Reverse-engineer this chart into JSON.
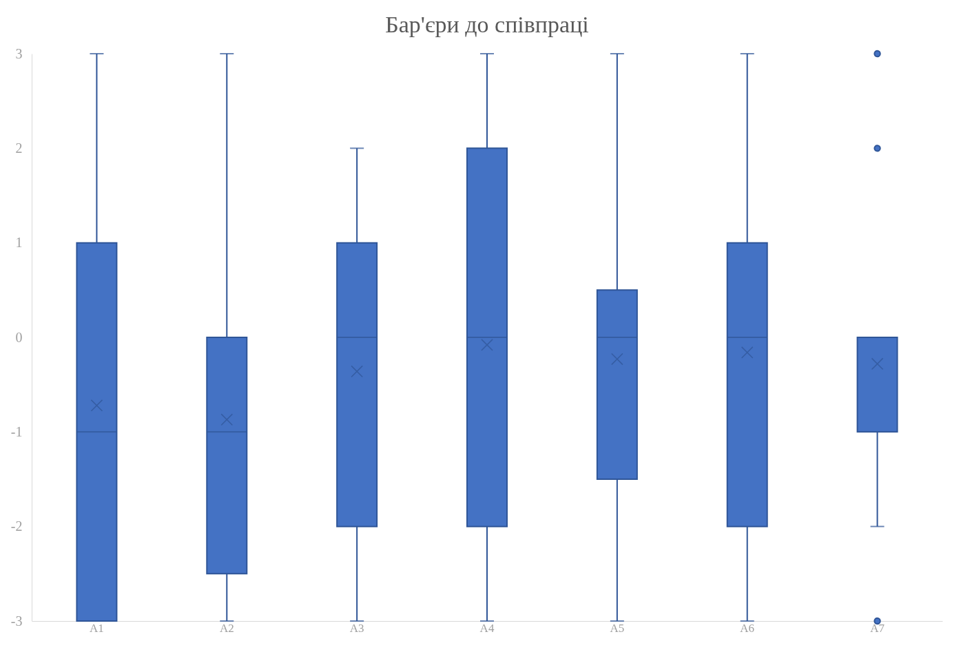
{
  "chart_data": {
    "type": "box",
    "title": "Бар'єри до співпраці",
    "categories": [
      "A1",
      "A2",
      "A3",
      "A4",
      "A5",
      "A6",
      "A7"
    ],
    "color": "#4472c4",
    "boxes": [
      {
        "low": -3,
        "q1": -3,
        "median": -1,
        "q3": 1,
        "high": 3,
        "mean": -0.72
      },
      {
        "low": -3,
        "q1": -2.5,
        "median": -1,
        "q3": 0,
        "high": 3,
        "mean": -0.87
      },
      {
        "low": -3,
        "q1": -2,
        "median": 0,
        "q3": 1,
        "high": 2,
        "mean": -0.36
      },
      {
        "low": -3,
        "q1": -2,
        "median": 0,
        "q3": 2,
        "high": 3,
        "mean": -0.08
      },
      {
        "low": -3,
        "q1": -1.5,
        "median": 0,
        "q3": 0.5,
        "high": 3,
        "mean": -0.23
      },
      {
        "low": -3,
        "q1": -2,
        "median": 0,
        "q3": 1,
        "high": 3,
        "mean": -0.16
      },
      {
        "low": -2,
        "q1": -1,
        "median": 0,
        "q3": 0,
        "high": 0,
        "mean": -0.28,
        "outliers": [
          3,
          2,
          -3
        ]
      }
    ],
    "ylim": [
      -3,
      3
    ],
    "yticks": [
      -3,
      -2,
      -1,
      0,
      1,
      2,
      3
    ],
    "grid": false,
    "marker": "cross"
  }
}
